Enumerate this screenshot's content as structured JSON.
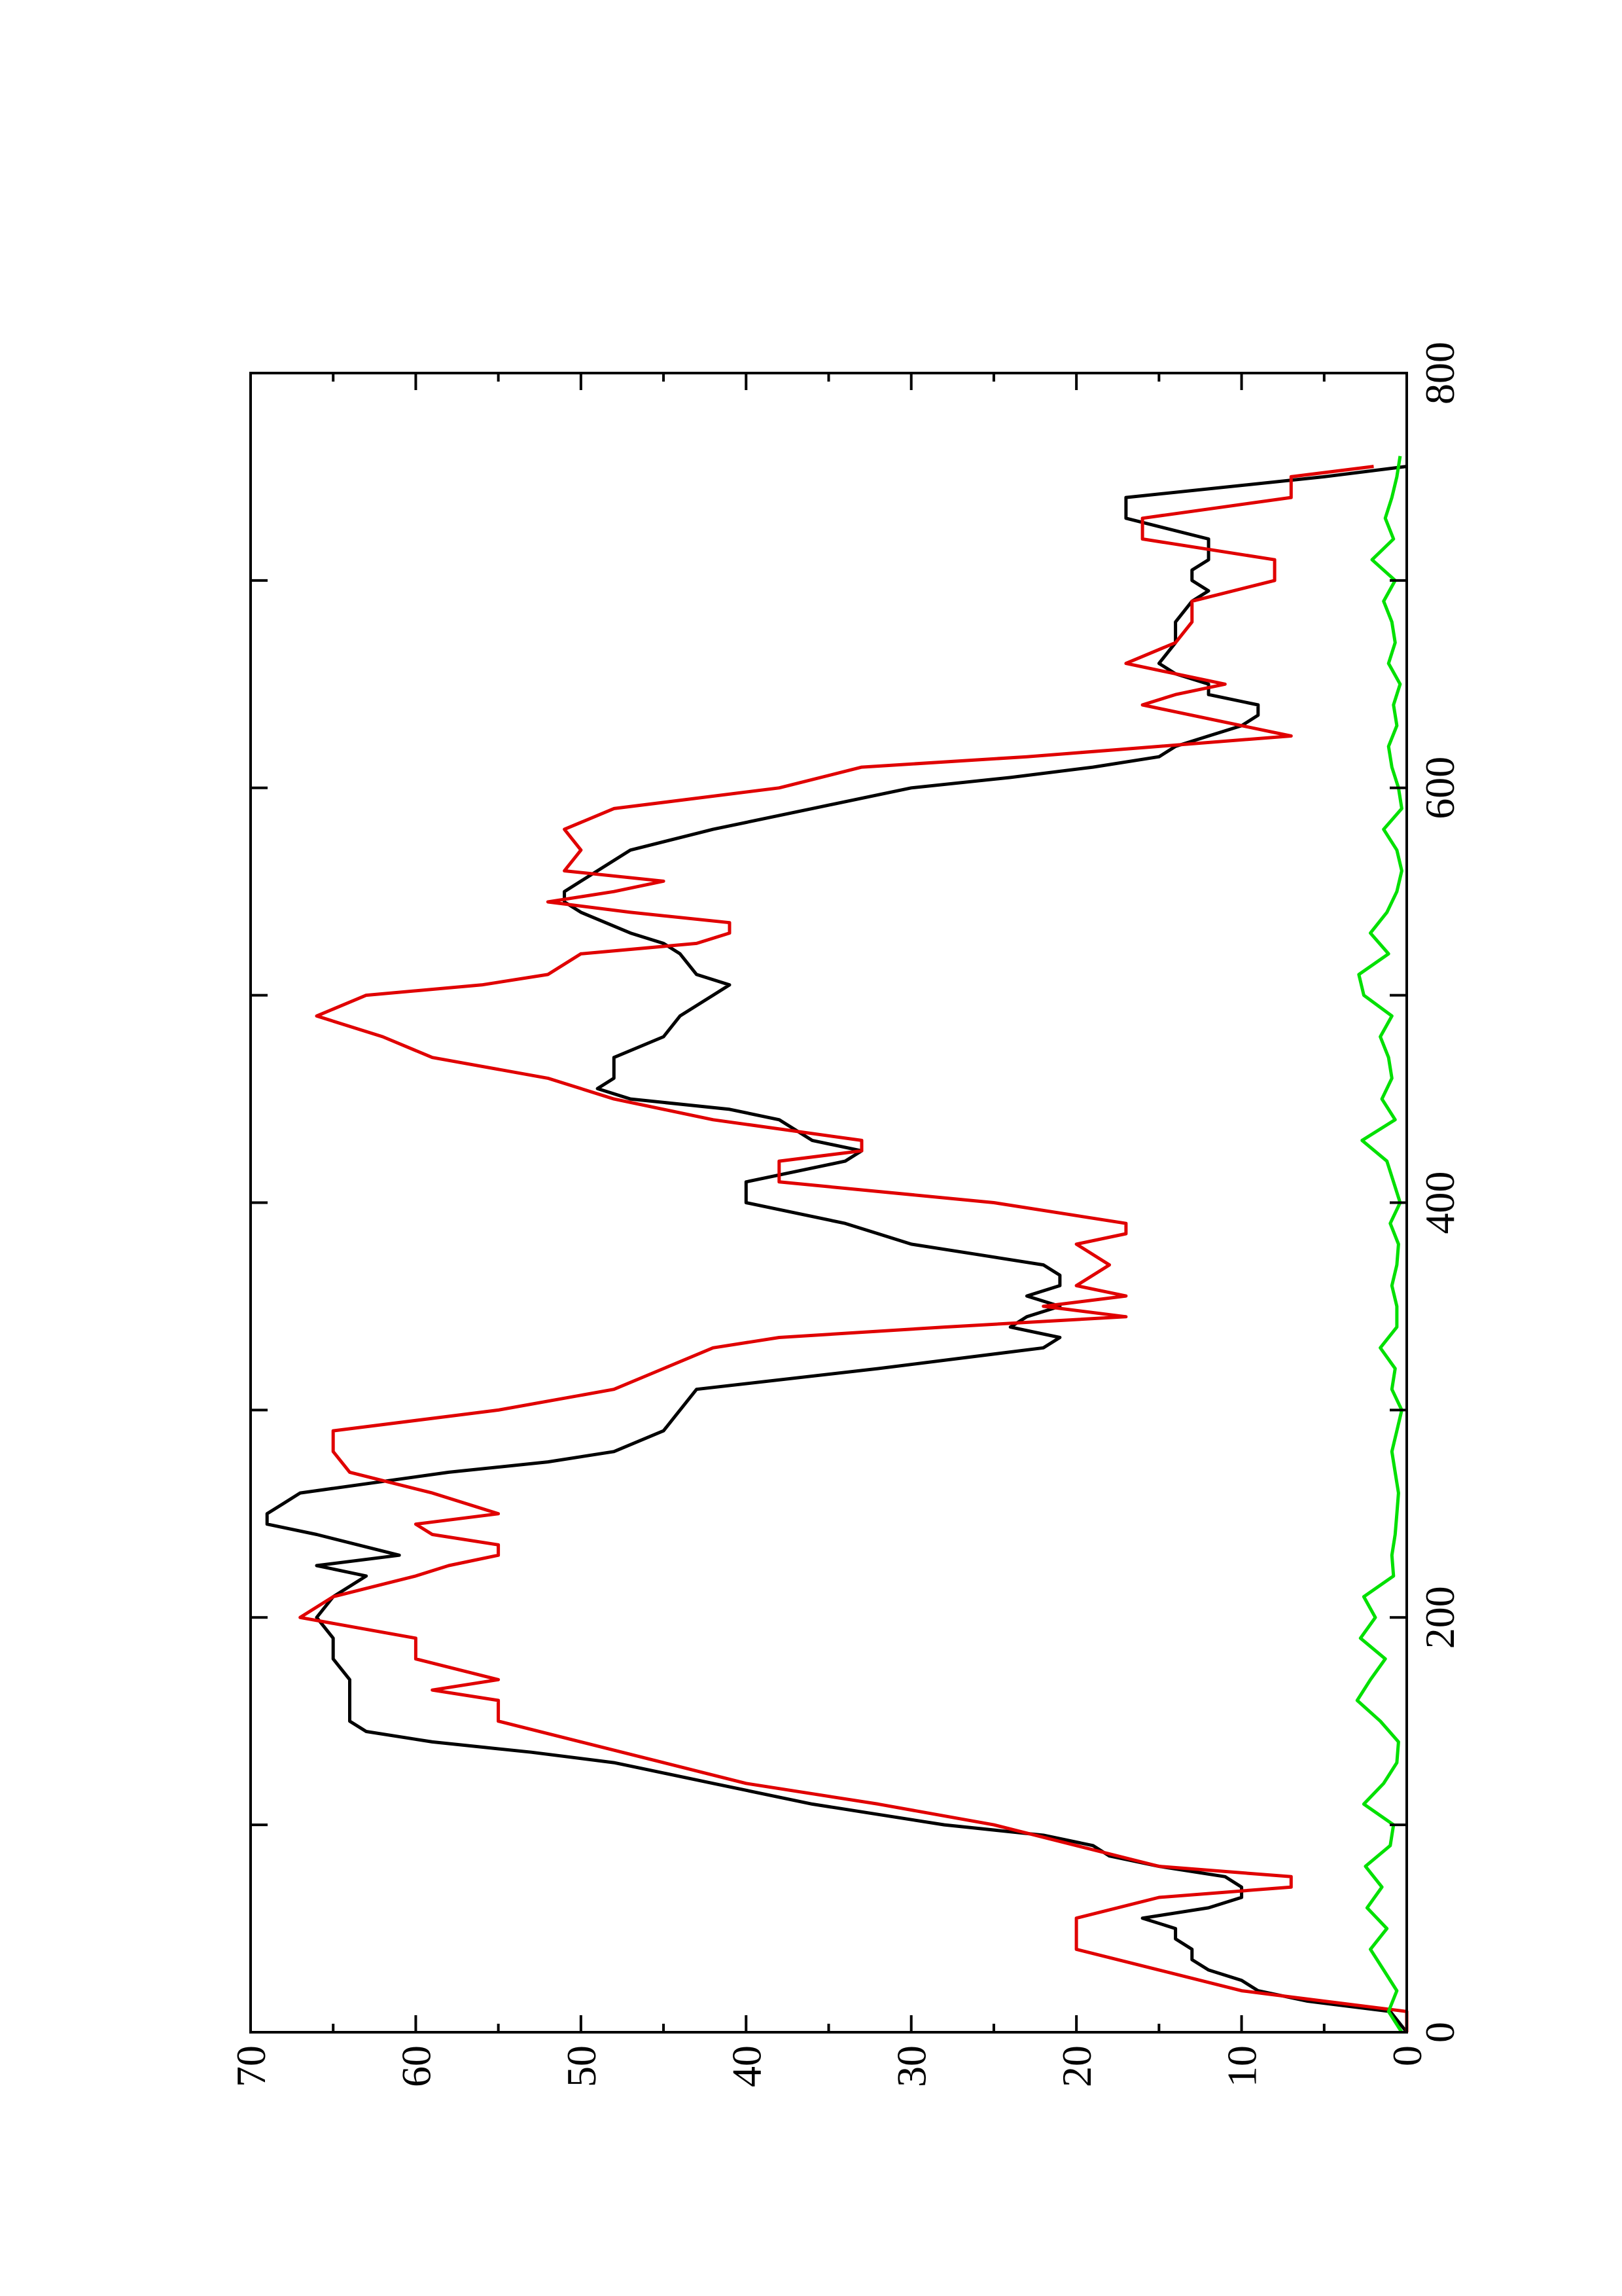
{
  "chart_data": {
    "type": "line",
    "orientation": "rotated-90-ccw",
    "title": "",
    "xlabel": "",
    "ylabel": "",
    "xlim": [
      0,
      800
    ],
    "ylim": [
      0,
      70
    ],
    "x_ticks": [
      0,
      200,
      400,
      600,
      800
    ],
    "x_tick_labels": [
      "0",
      "200",
      "400",
      "600",
      "800"
    ],
    "x_minor_ticks": [
      100,
      300,
      500,
      700
    ],
    "y_ticks": [
      0,
      10,
      20,
      30,
      40,
      50,
      60,
      70
    ],
    "y_tick_labels": [
      "0",
      "10",
      "20",
      "30",
      "40",
      "50",
      "60",
      "70"
    ],
    "y_minor_ticks": [
      5,
      15,
      25,
      35,
      45,
      55,
      65
    ],
    "grid": false,
    "legend": "none",
    "series": [
      {
        "color": "#000000",
        "x": [
          0,
          10,
          15,
          20,
          25,
          30,
          35,
          40,
          45,
          50,
          55,
          60,
          65,
          70,
          75,
          80,
          85,
          90,
          95,
          100,
          110,
          120,
          125,
          130,
          135,
          140,
          145,
          150,
          160,
          170,
          180,
          190,
          200,
          210,
          220,
          225,
          230,
          240,
          245,
          250,
          255,
          260,
          270,
          275,
          280,
          290,
          300,
          310,
          320,
          330,
          335,
          340,
          345,
          350,
          355,
          360,
          365,
          370,
          375,
          380,
          385,
          390,
          395,
          400,
          410,
          420,
          425,
          430,
          440,
          445,
          450,
          455,
          460,
          470,
          480,
          490,
          500,
          505,
          510,
          520,
          525,
          530,
          540,
          545,
          550,
          555,
          560,
          570,
          580,
          590,
          600,
          605,
          610,
          615,
          620,
          625,
          630,
          635,
          640,
          645,
          650,
          655,
          660,
          670,
          680,
          690,
          695,
          700,
          705,
          710,
          720,
          730,
          740,
          750,
          755
        ],
        "y": [
          0,
          1,
          6,
          9,
          10,
          12,
          13,
          13,
          14,
          14,
          16,
          12,
          10,
          10,
          11,
          15,
          18,
          19,
          22,
          28,
          36,
          42,
          45,
          48,
          53,
          59,
          63,
          64,
          64,
          64,
          65,
          65,
          66,
          65,
          63,
          66,
          61,
          66,
          69,
          69,
          68,
          67,
          58,
          52,
          48,
          45,
          44,
          43,
          32,
          22,
          21,
          24,
          23,
          21,
          23,
          21,
          21,
          22,
          26,
          30,
          32,
          34,
          37,
          40,
          40,
          34,
          33,
          36,
          38,
          41,
          47,
          49,
          48,
          48,
          45,
          44,
          42,
          41,
          43,
          44,
          45,
          47,
          50,
          51,
          51,
          50,
          49,
          47,
          42,
          36,
          30,
          24,
          19,
          15,
          14,
          12,
          10,
          9,
          9,
          12,
          12,
          14,
          15,
          14,
          14,
          13,
          12,
          13,
          13,
          12,
          12,
          17,
          17,
          5,
          0
        ]
      },
      {
        "color": "#e00000",
        "x": [
          0,
          10,
          15,
          20,
          30,
          40,
          55,
          65,
          70,
          75,
          80,
          90,
          100,
          110,
          120,
          130,
          140,
          150,
          160,
          165,
          170,
          180,
          190,
          200,
          210,
          220,
          225,
          230,
          235,
          240,
          245,
          250,
          260,
          270,
          280,
          290,
          300,
          310,
          320,
          330,
          335,
          340,
          345,
          350,
          355,
          360,
          370,
          380,
          385,
          390,
          400,
          410,
          420,
          425,
          430,
          440,
          450,
          460,
          470,
          480,
          490,
          500,
          505,
          510,
          520,
          525,
          530,
          535,
          540,
          545,
          550,
          555,
          560,
          570,
          580,
          590,
          600,
          610,
          615,
          620,
          625,
          630,
          640,
          645,
          650,
          660,
          670,
          680,
          690,
          700,
          705,
          710,
          720,
          730,
          740,
          750,
          755
        ],
        "y": [
          0,
          0,
          5,
          10,
          15,
          20,
          20,
          15,
          7,
          7,
          15,
          20,
          25,
          32,
          40,
          45,
          50,
          55,
          55,
          59,
          55,
          60,
          60,
          67,
          65,
          60,
          58,
          55,
          55,
          59,
          60,
          55,
          59,
          64,
          65,
          65,
          55,
          48,
          45,
          42,
          38,
          28,
          17,
          22,
          17,
          20,
          18,
          20,
          17,
          17,
          25,
          38,
          38,
          33,
          33,
          42,
          48,
          52,
          59,
          62,
          66,
          63,
          56,
          52,
          50,
          43,
          41,
          41,
          47,
          52,
          48,
          45,
          51,
          50,
          51,
          48,
          38,
          33,
          23,
          15,
          7,
          10,
          16,
          14,
          11,
          17,
          14,
          13,
          13,
          8,
          8,
          8,
          16,
          16,
          7,
          7,
          2
        ]
      },
      {
        "color": "#00e000",
        "x": [
          0,
          10,
          20,
          30,
          40,
          50,
          60,
          70,
          80,
          90,
          100,
          110,
          120,
          130,
          140,
          150,
          160,
          170,
          180,
          190,
          200,
          210,
          220,
          230,
          240,
          250,
          260,
          270,
          280,
          290,
          300,
          310,
          320,
          330,
          340,
          350,
          360,
          370,
          380,
          390,
          400,
          410,
          420,
          430,
          440,
          450,
          460,
          470,
          480,
          490,
          500,
          510,
          520,
          530,
          540,
          550,
          560,
          570,
          580,
          590,
          600,
          610,
          620,
          630,
          640,
          650,
          660,
          670,
          680,
          690,
          700,
          710,
          720,
          730,
          740,
          750,
          760
        ],
        "y": [
          0.3,
          1.1,
          0.6,
          1.4,
          2.2,
          1.2,
          2.4,
          1.5,
          2.5,
          1.0,
          0.8,
          2.6,
          1.4,
          0.6,
          0.5,
          1.6,
          3.0,
          2.2,
          1.3,
          2.8,
          1.9,
          2.6,
          0.8,
          0.9,
          0.7,
          0.6,
          0.5,
          0.7,
          0.9,
          0.6,
          0.3,
          0.9,
          0.7,
          1.6,
          0.6,
          0.6,
          0.9,
          0.6,
          0.5,
          1.0,
          0.4,
          0.8,
          1.2,
          2.7,
          0.7,
          1.5,
          0.9,
          1.1,
          1.6,
          0.9,
          2.6,
          2.9,
          1.1,
          2.2,
          1.2,
          0.6,
          0.3,
          0.6,
          1.4,
          0.3,
          0.5,
          0.9,
          1.1,
          0.6,
          0.8,
          0.4,
          1.1,
          0.7,
          0.9,
          1.4,
          0.7,
          2.1,
          0.8,
          1.3,
          0.9,
          0.6,
          0.4
        ]
      }
    ]
  }
}
